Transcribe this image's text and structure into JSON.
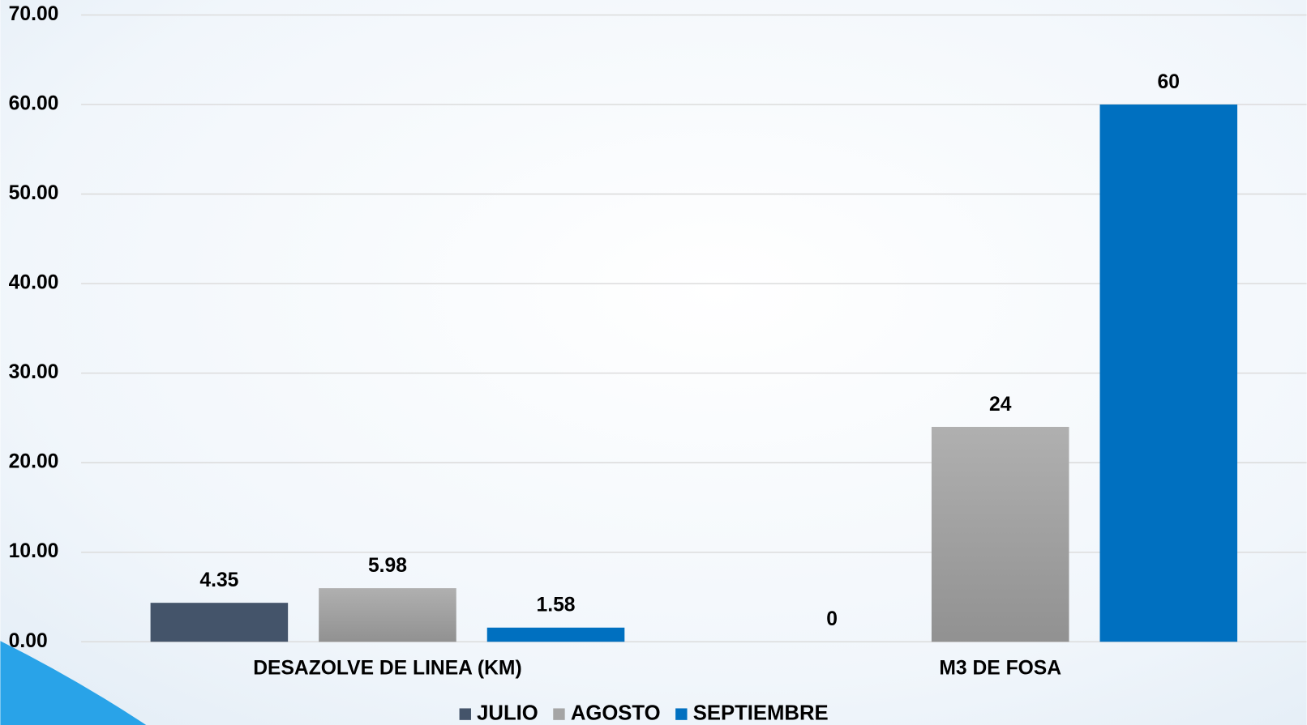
{
  "chart_data": {
    "type": "bar",
    "categories": [
      "DESAZOLVE DE LINEA (KM)",
      "M3 DE FOSA"
    ],
    "series": [
      {
        "name": "JULIO",
        "color": "#44546a",
        "values": [
          4.35,
          0
        ]
      },
      {
        "name": "AGOSTO",
        "color": "#a5a5a5",
        "values": [
          5.98,
          24
        ]
      },
      {
        "name": "SEPTIEMBRE",
        "color": "#0070c0",
        "values": [
          1.58,
          60
        ]
      }
    ],
    "ylim": [
      0,
      70
    ],
    "yticks": [
      {
        "value": 0,
        "label": "0.00"
      },
      {
        "value": 10,
        "label": "10.00"
      },
      {
        "value": 20,
        "label": "20.00"
      },
      {
        "value": 30,
        "label": "30.00"
      },
      {
        "value": 40,
        "label": "40.00"
      },
      {
        "value": 50,
        "label": "50.00"
      },
      {
        "value": 60,
        "label": "60.00"
      },
      {
        "value": 70,
        "label": "70.00"
      }
    ],
    "grid": true,
    "legend": "bottom"
  }
}
